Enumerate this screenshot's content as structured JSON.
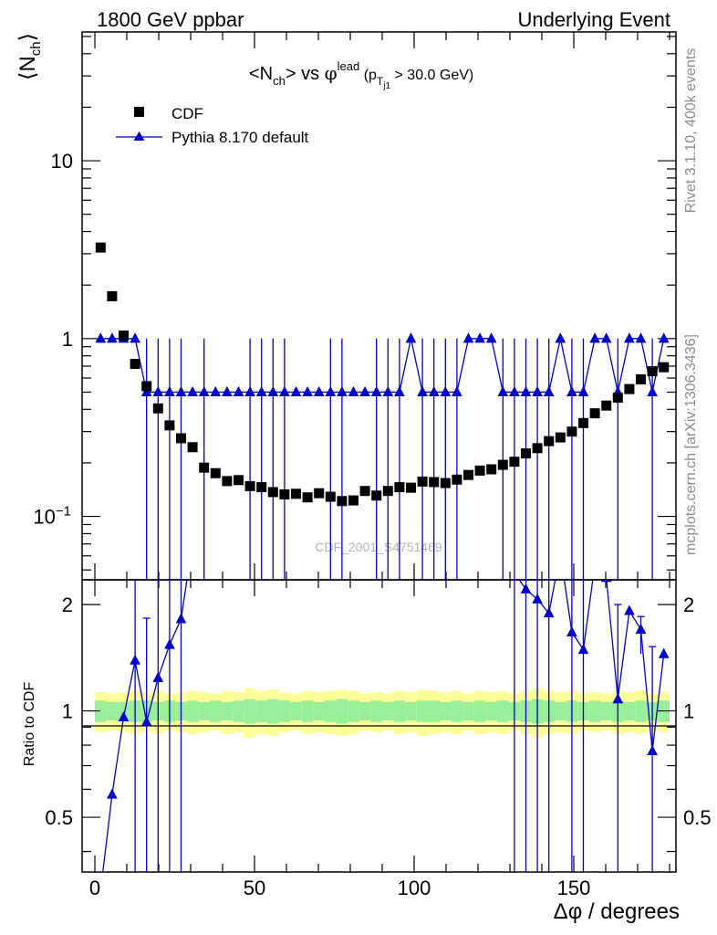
{
  "header": {
    "left": "1800 GeV ppbar",
    "right": "Underlying Event"
  },
  "side": {
    "top": "Rivet 3.1.10,  400k events",
    "bottom": "mcplots.cern.ch [arXiv:1306.3436]"
  },
  "watermark": "CDF_2001_S4751469",
  "chart_data": {
    "type": "scatter",
    "main": {
      "ylabel_main": "N",
      "ylabel_sub": "ch",
      "title": {
        "a": "<N",
        "a_sub": "ch",
        "b": "> vs ",
        "phi": "φ",
        "phi_sup": "lead",
        "p_open": " (p",
        "p_sub": "T",
        "p_subsub": "j1",
        "p_rest": " > 30.0 GeV)"
      },
      "yscale": "log",
      "ylim": [
        0.044,
        53
      ],
      "yticks": [
        {
          "v": 0.1,
          "base": "10",
          "exp": "−1"
        },
        {
          "v": 1,
          "text": "1"
        },
        {
          "v": 10,
          "text": "10"
        }
      ]
    },
    "ratio": {
      "ylabel": "Ratio to CDF",
      "ylim": [
        0.35,
        2.35
      ],
      "yticks": [
        {
          "v": 0.5,
          "text": "0.5"
        },
        {
          "v": 1,
          "text": "1"
        },
        {
          "v": 2,
          "text": "2"
        }
      ]
    },
    "xlabel": "Δφ / degrees",
    "xlim": [
      -4,
      182
    ],
    "xticks": [
      {
        "v": 0,
        "text": "0"
      },
      {
        "v": 50,
        "text": "50"
      },
      {
        "v": 100,
        "text": "100"
      },
      {
        "v": 150,
        "text": "150"
      }
    ],
    "legend_position": "top-left",
    "colors": {
      "cdf": "#000000",
      "pythia": "#0000cc",
      "band_inner": "#99ee99",
      "band_outer": "#ffff99"
    },
    "series": [
      {
        "name": "CDF",
        "x": [
          1.8,
          5.4,
          9.0,
          12.6,
          16.2,
          19.8,
          23.4,
          27.0,
          30.6,
          34.2,
          37.8,
          41.4,
          45.0,
          48.6,
          52.2,
          55.8,
          59.4,
          63.0,
          66.6,
          70.2,
          73.8,
          77.4,
          81.0,
          84.6,
          88.2,
          91.8,
          95.4,
          99.0,
          102.6,
          106.2,
          109.8,
          113.4,
          117.0,
          120.6,
          124.2,
          127.8,
          131.4,
          135.0,
          138.6,
          142.2,
          145.8,
          149.4,
          153.0,
          156.6,
          160.2,
          163.8,
          167.4,
          171.0,
          174.6,
          178.2
        ],
        "y": [
          3.25,
          1.73,
          1.04,
          0.72,
          0.54,
          0.405,
          0.325,
          0.275,
          0.245,
          0.188,
          0.175,
          0.158,
          0.16,
          0.148,
          0.146,
          0.137,
          0.133,
          0.134,
          0.128,
          0.135,
          0.129,
          0.122,
          0.123,
          0.139,
          0.131,
          0.139,
          0.146,
          0.145,
          0.157,
          0.156,
          0.154,
          0.161,
          0.171,
          0.181,
          0.184,
          0.195,
          0.203,
          0.226,
          0.242,
          0.265,
          0.278,
          0.3,
          0.335,
          0.38,
          0.42,
          0.465,
          0.52,
          0.59,
          0.655,
          0.69
        ]
      },
      {
        "name": "Pythia 8.170 default",
        "x": [
          1.8,
          5.4,
          9.0,
          12.6,
          16.2,
          19.8,
          23.4,
          27.0,
          30.6,
          34.2,
          37.8,
          41.4,
          45.0,
          48.6,
          52.2,
          55.8,
          59.4,
          63.0,
          66.6,
          70.2,
          73.8,
          77.4,
          81.0,
          84.6,
          88.2,
          91.8,
          95.4,
          99.0,
          102.6,
          106.2,
          109.8,
          113.4,
          117.0,
          120.6,
          124.2,
          127.8,
          131.4,
          135.0,
          138.6,
          142.2,
          145.8,
          149.4,
          153.0,
          156.6,
          160.2,
          163.8,
          167.4,
          171.0,
          174.6,
          178.2
        ],
        "y": [
          1.0,
          1.0,
          1.0,
          1.0,
          0.5,
          0.5,
          0.5,
          0.5,
          0.5,
          0.5,
          0.5,
          0.5,
          0.5,
          0.5,
          0.5,
          0.5,
          0.5,
          0.5,
          0.5,
          0.5,
          0.5,
          0.5,
          0.5,
          0.5,
          0.5,
          0.5,
          0.5,
          1.0,
          0.5,
          0.5,
          0.5,
          0.5,
          1.0,
          1.0,
          1.0,
          0.5,
          0.5,
          0.5,
          0.5,
          0.5,
          1.0,
          0.5,
          0.5,
          1.0,
          1.0,
          0.5,
          1.0,
          1.0,
          0.5,
          1.0
        ],
        "error_bars_x": [
          16.2,
          19.8,
          23.4,
          27.0,
          34.2,
          48.6,
          52.2,
          55.8,
          59.4,
          73.8,
          77.4,
          88.2,
          91.8,
          95.4,
          102.6,
          106.2,
          109.8,
          113.4,
          127.8,
          131.4,
          135.0,
          138.6,
          142.2,
          149.4,
          153.0,
          163.8,
          174.6
        ],
        "error_y_range": [
          0.044,
          1.0
        ]
      }
    ],
    "ratio_series": [
      {
        "name": "Pythia 8.170 default",
        "x": [
          1.8,
          5.4,
          9.0,
          12.6,
          16.2,
          19.8,
          23.4,
          27.0,
          30.6,
          131.4,
          135.0,
          138.6,
          142.2,
          145.8,
          149.4,
          153.0,
          156.6,
          160.2,
          163.8,
          167.4,
          171.0,
          174.6,
          178.2
        ],
        "y": [
          0.31,
          0.58,
          0.96,
          1.39,
          0.93,
          1.24,
          1.54,
          1.82,
          3.0,
          2.46,
          2.21,
          2.07,
          1.89,
          2.8,
          1.67,
          1.49,
          2.6,
          2.38,
          1.08,
          1.92,
          1.7,
          0.77,
          1.45
        ],
        "error_bars": [
          {
            "x": 12.6,
            "lo": 0.35,
            "hi": 2.35
          },
          {
            "x": 16.2,
            "lo": 0.35,
            "hi": 1.83
          },
          {
            "x": 19.8,
            "lo": 0.35,
            "hi": 2.35
          },
          {
            "x": 23.4,
            "lo": 0.35,
            "hi": 2.35
          },
          {
            "x": 27.0,
            "lo": 0.35,
            "hi": 2.35
          },
          {
            "x": 131.4,
            "lo": 0.35,
            "hi": 2.35
          },
          {
            "x": 135.0,
            "lo": 0.35,
            "hi": 2.35
          },
          {
            "x": 138.6,
            "lo": 0.35,
            "hi": 2.35
          },
          {
            "x": 142.2,
            "lo": 0.35,
            "hi": 2.35
          },
          {
            "x": 149.4,
            "lo": 0.35,
            "hi": 2.35
          },
          {
            "x": 153.0,
            "lo": 0.35,
            "hi": 2.35
          },
          {
            "x": 163.8,
            "lo": 0.35,
            "hi": 2.0
          },
          {
            "x": 174.6,
            "lo": 0.35,
            "hi": 1.52
          },
          {
            "x": 171.0,
            "lo": 1.45,
            "hi": 1.85
          }
        ]
      }
    ],
    "bands": {
      "inner": [
        0.07,
        0.06,
        0.06,
        0.07,
        0.07,
        0.06,
        0.07,
        0.06,
        0.07,
        0.06,
        0.07,
        0.06,
        0.07,
        0.08,
        0.07,
        0.08,
        0.07,
        0.06,
        0.07,
        0.06,
        0.07,
        0.08,
        0.07,
        0.06,
        0.07,
        0.06,
        0.07,
        0.06,
        0.07,
        0.07,
        0.06,
        0.07,
        0.06,
        0.07,
        0.06,
        0.07,
        0.06,
        0.07,
        0.08,
        0.07,
        0.06,
        0.07,
        0.06,
        0.07,
        0.06,
        0.07,
        0.06,
        0.07,
        0.06,
        0.07
      ],
      "outer": [
        0.13,
        0.12,
        0.13,
        0.14,
        0.13,
        0.14,
        0.12,
        0.13,
        0.14,
        0.13,
        0.12,
        0.14,
        0.13,
        0.16,
        0.14,
        0.15,
        0.13,
        0.12,
        0.14,
        0.13,
        0.14,
        0.15,
        0.14,
        0.12,
        0.13,
        0.12,
        0.14,
        0.13,
        0.15,
        0.14,
        0.13,
        0.14,
        0.12,
        0.14,
        0.13,
        0.14,
        0.12,
        0.14,
        0.16,
        0.14,
        0.13,
        0.14,
        0.12,
        0.13,
        0.12,
        0.14,
        0.13,
        0.14,
        0.12,
        0.13
      ]
    }
  }
}
